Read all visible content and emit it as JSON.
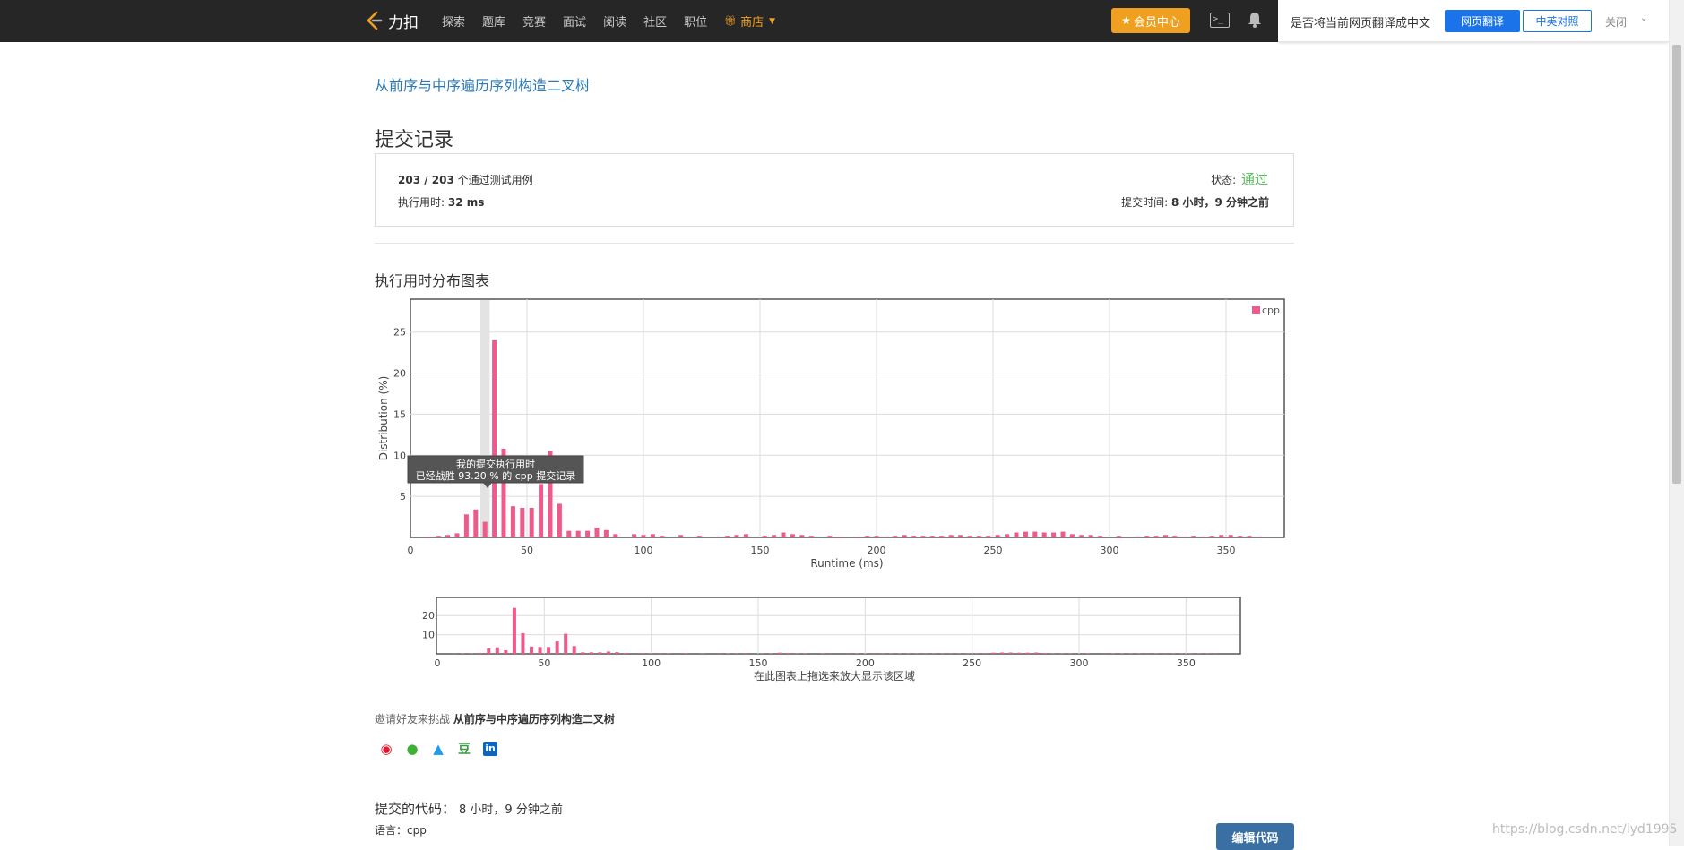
{
  "navbar": {
    "brand": "力扣",
    "items": [
      "探索",
      "题库",
      "竞赛",
      "面试",
      "阅读",
      "社区",
      "职位"
    ],
    "store": "商店",
    "vip": "会员中心"
  },
  "translate_bar": {
    "prompt": "是否将当前网页翻译成中文",
    "translate": "网页翻译",
    "compare": "中英对照",
    "close": "关闭"
  },
  "problem_link": "从前序与中序遍历序列构造二叉树",
  "title": "提交记录",
  "summary": {
    "cases": "203 / 203",
    "cases_suffix": " 个通过测试用例",
    "runtime_label": "执行用时: ",
    "runtime": "32 ms",
    "status_label": "状态: ",
    "status": "通过",
    "submit_label": "提交时间: ",
    "submit_time": "8 小时，9 分钟之前"
  },
  "chart_title": "执行用时分布图表",
  "tooltip": {
    "line1": "我的提交执行用时",
    "line2": "已经战胜 93.20 % 的 cpp 提交记录"
  },
  "overview_hint": "在此图表上拖选来放大显示该区域",
  "share": {
    "label": "邀请好友来挑战 ",
    "problem": "从前序与中序遍历序列构造二叉树",
    "icons": [
      "weibo-icon",
      "wechat-icon",
      "qq-icon",
      "douban-icon",
      "linkedin-icon"
    ],
    "douban_glyph": "豆",
    "linkedin_glyph": "in"
  },
  "code": {
    "label": "提交的代码：",
    "time": "8 小时，9 分钟之前",
    "lang_label": "语言：",
    "lang": "cpp",
    "edit": "编辑代码"
  },
  "watermark": "https://blog.csdn.net/lyd1995",
  "colors": {
    "bar": "#ee5a8a",
    "highlight": "#e3e3e3",
    "accent": "#f0a020",
    "link": "#2a7ab8",
    "pass": "#5cb85c"
  },
  "chart_data": {
    "type": "bar",
    "xlabel": "Runtime (ms)",
    "ylabel": "Distribution (%)",
    "legend": "cpp",
    "legend_position": "top-right",
    "xlim": [
      0,
      375
    ],
    "ylim": [
      0,
      29
    ],
    "xticks": [
      0,
      50,
      100,
      150,
      200,
      250,
      300,
      350
    ],
    "yticks": [
      5,
      10,
      15,
      20,
      25
    ],
    "highlight_x": 32,
    "grid": true,
    "x": [
      8,
      12,
      16,
      20,
      24,
      28,
      32,
      36,
      40,
      44,
      48,
      52,
      56,
      60,
      64,
      68,
      72,
      76,
      80,
      84,
      88,
      96,
      100,
      104,
      108,
      116,
      124,
      132,
      136,
      140,
      144,
      152,
      156,
      160,
      164,
      168,
      172,
      180,
      184,
      192,
      196,
      200,
      204,
      208,
      212,
      216,
      220,
      224,
      228,
      232,
      236,
      240,
      244,
      248,
      252,
      256,
      260,
      264,
      268,
      272,
      276,
      280,
      284,
      288,
      292,
      296,
      304,
      312,
      316,
      320,
      324,
      328,
      332,
      336,
      340,
      344,
      348,
      352,
      356,
      360,
      364
    ],
    "y": [
      0.1,
      0.2,
      0.3,
      0.5,
      2.8,
      3.4,
      1.9,
      24,
      10.8,
      3.8,
      3.6,
      3.6,
      6.5,
      10.5,
      4.1,
      0.8,
      0.8,
      0.8,
      1.2,
      0.9,
      0.4,
      0.4,
      0.3,
      0.4,
      0.2,
      0.3,
      0.2,
      0.1,
      0.2,
      0.3,
      0.4,
      0.2,
      0.3,
      0.6,
      0.4,
      0.3,
      0.2,
      0.2,
      0.1,
      0.1,
      0.2,
      0.2,
      0.1,
      0.2,
      0.3,
      0.2,
      0.2,
      0.2,
      0.2,
      0.3,
      0.3,
      0.2,
      0.2,
      0.2,
      0.3,
      0.4,
      0.6,
      0.7,
      0.7,
      0.6,
      0.6,
      0.7,
      0.4,
      0.3,
      0.3,
      0.2,
      0.2,
      0.1,
      0.2,
      0.2,
      0.3,
      0.2,
      0.1,
      0.2,
      0.1,
      0.2,
      0.3,
      0.3,
      0.2,
      0.2,
      0.1
    ],
    "overview_xticks": [
      0,
      50,
      100,
      150,
      200,
      250,
      300,
      350
    ],
    "overview_yticks": [
      10,
      20
    ]
  }
}
